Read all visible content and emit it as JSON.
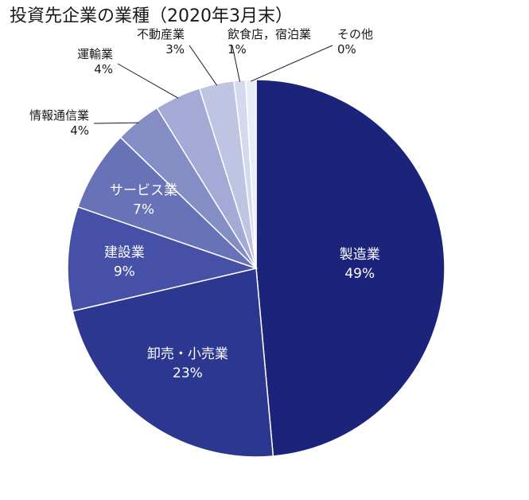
{
  "chart_data": {
    "type": "pie",
    "title": "投資先企業の業種（2020年3月末）",
    "slices": [
      {
        "label": "製造業",
        "value": 49,
        "display": "49%",
        "color": "#1c237b"
      },
      {
        "label": "卸売・小売業",
        "value": 23,
        "display": "23%",
        "color": "#2c3790"
      },
      {
        "label": "建設業",
        "value": 9,
        "display": "9%",
        "color": "#4550a6"
      },
      {
        "label": "サービス業",
        "value": 7,
        "display": "7%",
        "color": "#6872b7"
      },
      {
        "label": "情報通信業",
        "value": 4,
        "display": "4%",
        "color": "#858dc5"
      },
      {
        "label": "運輸業",
        "value": 4,
        "display": "4%",
        "color": "#a4aad5"
      },
      {
        "label": "不動産業",
        "value": 3,
        "display": "3%",
        "color": "#bfc4e2"
      },
      {
        "label": "飲食店，宿泊業",
        "value": 1,
        "display": "1%",
        "color": "#d4d9ee"
      },
      {
        "label": "その他",
        "value": 0,
        "display": "0%",
        "color": "#e9edf7"
      }
    ]
  }
}
